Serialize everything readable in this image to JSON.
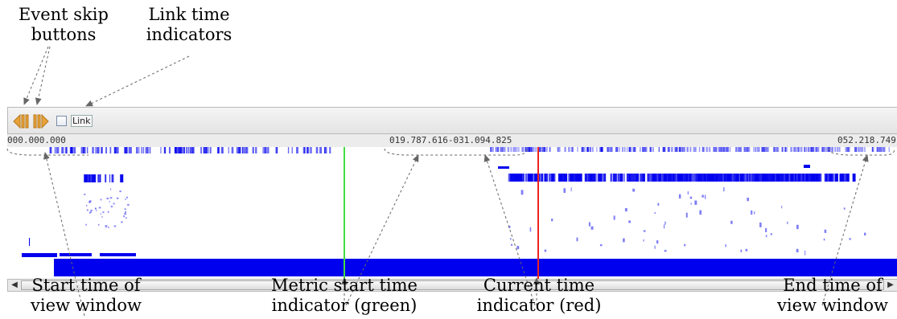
{
  "annotations": {
    "event_skip_line1": "Event skip",
    "event_skip_line2": "buttons",
    "link_time_line1": "Link time",
    "link_time_line2": "indicators",
    "start_time_line1": "Start time of",
    "start_time_line2": "view window",
    "metric_start_line1": "Metric start time",
    "metric_start_line2": "indicator (green)",
    "current_time_line1": "Current time",
    "current_time_line2": "indicator (red)",
    "end_time_line1": "End time of",
    "end_time_line2": "view window"
  },
  "toolbar": {
    "skip_back_icon": "skip-back-icon",
    "skip_forward_icon": "skip-forward-icon",
    "link_label": "Link",
    "link_checked": false,
    "icon_color": "#e8a23a"
  },
  "ruler": {
    "start_time": "000.000.000",
    "selection_range": "019.787.616-031.094.825",
    "end_time": "052.218.749"
  },
  "colors": {
    "trace_blue": "#0000ee",
    "metric_start_green": "#44dd44",
    "current_time_red": "#ee2222",
    "arrow_gray": "#666666"
  },
  "scrollbar": {
    "left_arrow": "◀",
    "right_arrow": "▶"
  }
}
